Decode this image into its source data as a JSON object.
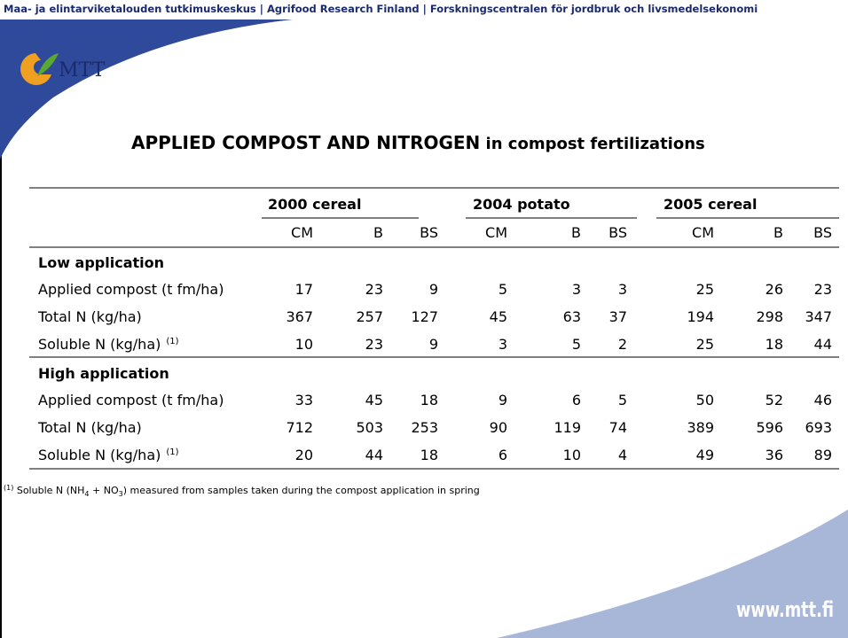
{
  "header": {
    "banner": "Maa- ja elintarviketalouden tutkimuskeskus  |  Agrifood Research Finland  |  Forskningscentralen för jordbruk och livsmedelsekonomi",
    "logo": "MTT"
  },
  "title": {
    "bold": "APPLIED COMPOST AND NITROGEN",
    "rest": " in compost fertilizations"
  },
  "table": {
    "groups": [
      "2000 cereal",
      "2004 potato",
      "2005 cereal"
    ],
    "subheaders": [
      "CM",
      "B",
      "BS",
      "CM",
      "B",
      "BS",
      "CM",
      "B",
      "BS"
    ],
    "sections": [
      {
        "title": "Low application",
        "rows": [
          {
            "label": "Applied compost (t fm/ha)",
            "values": [
              17,
              23,
              9,
              5,
              3,
              3,
              25,
              26,
              23
            ]
          },
          {
            "label": "Total N (kg/ha)",
            "values": [
              367,
              257,
              127,
              45,
              63,
              37,
              194,
              298,
              347
            ]
          },
          {
            "label": "Soluble N (kg/ha)",
            "note_ref": "(1)",
            "values": [
              10,
              23,
              9,
              3,
              5,
              2,
              25,
              18,
              44
            ]
          }
        ]
      },
      {
        "title": "High application",
        "rows": [
          {
            "label": "Applied compost (t fm/ha)",
            "values": [
              33,
              45,
              18,
              9,
              6,
              5,
              50,
              52,
              46
            ]
          },
          {
            "label": "Total N (kg/ha)",
            "values": [
              712,
              503,
              253,
              90,
              119,
              74,
              389,
              596,
              693
            ]
          },
          {
            "label": "Soluble N (kg/ha)",
            "note_ref": "(1)",
            "values": [
              20,
              44,
              18,
              6,
              10,
              4,
              49,
              36,
              89
            ]
          }
        ]
      }
    ]
  },
  "footnote": {
    "ref": "(1)",
    "parts": [
      " Soluble N (NH",
      "4",
      " + NO",
      "3",
      ") measured from samples taken during the compost application in spring"
    ]
  },
  "footer": {
    "url": "www.mtt.fi"
  }
}
